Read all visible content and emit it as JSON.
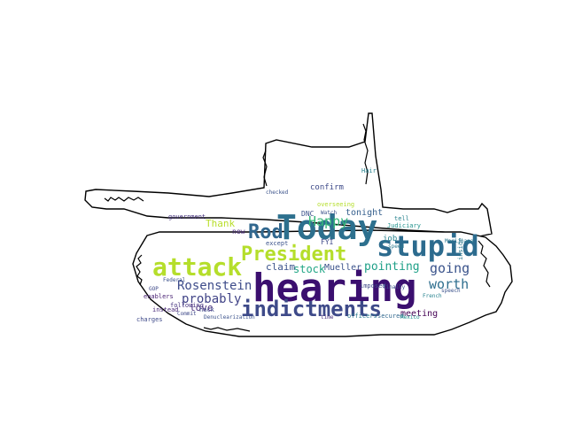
{
  "wordcloud": {
    "words": [
      {
        "text": "hearing",
        "color": "#3b0f6f"
      },
      {
        "text": "Today",
        "color": "#2d708e"
      },
      {
        "text": "stupid",
        "color": "#2c6b8e"
      },
      {
        "text": "indictments",
        "color": "#3e4a89"
      },
      {
        "text": "President",
        "color": "#b5de2b"
      },
      {
        "text": "attack",
        "color": "#b5de2b"
      },
      {
        "text": "Rod",
        "color": "#31678e"
      },
      {
        "text": "Rosenstein",
        "color": "#3e4c8a"
      },
      {
        "text": "worth",
        "color": "#2e6e8e"
      },
      {
        "text": "going",
        "color": "#3a538b"
      },
      {
        "text": "pointing",
        "color": "#1fa088"
      },
      {
        "text": "probably",
        "color": "#414487"
      },
      {
        "text": "Happy",
        "color": "#35b779"
      },
      {
        "text": "stock",
        "color": "#21a685"
      },
      {
        "text": "Thank",
        "color": "#b8de29"
      },
      {
        "text": "claim",
        "color": "#3b528b"
      },
      {
        "text": "love",
        "color": "#472d7b"
      },
      {
        "text": "tonight",
        "color": "#355f8d"
      },
      {
        "text": "Mueller",
        "color": "#3b528b"
      },
      {
        "text": "meeting",
        "color": "#440154"
      },
      {
        "text": "job",
        "color": "#26828e"
      },
      {
        "text": "confirm",
        "color": "#3e4a89"
      },
      {
        "text": "DNC",
        "color": "#3b528b"
      },
      {
        "text": "new",
        "color": "#482878"
      },
      {
        "text": "FYI",
        "color": "#3e4989"
      },
      {
        "text": "government",
        "color": "#46327e"
      },
      {
        "text": "instead",
        "color": "#482878"
      },
      {
        "text": "hack",
        "color": "#3e4989"
      },
      {
        "text": "following",
        "color": "#46337f"
      },
      {
        "text": "enablers",
        "color": "#482173"
      },
      {
        "text": "charges",
        "color": "#3e4989"
      },
      {
        "text": "tell",
        "color": "#26828e"
      },
      {
        "text": "Judiciary",
        "color": "#21918c"
      },
      {
        "text": "inside",
        "color": "#2a788e"
      },
      {
        "text": "overseeing",
        "color": "#b5de2b"
      },
      {
        "text": "except",
        "color": "#3b528b"
      },
      {
        "text": "imposed",
        "color": "#3e4989"
      },
      {
        "text": "Watch",
        "color": "#3b528b"
      },
      {
        "text": "officers",
        "color": "#2a788e"
      },
      {
        "text": "secured",
        "color": "#31688e"
      },
      {
        "text": "Denuclearization",
        "color": "#3b528b"
      },
      {
        "text": "time",
        "color": "#472d7b"
      },
      {
        "text": "French",
        "color": "#26828e"
      },
      {
        "text": "speech",
        "color": "#3b528b"
      },
      {
        "text": "Marijuana",
        "color": "#2a788e"
      },
      {
        "text": "Mexico",
        "color": "#21918c"
      },
      {
        "text": "finally",
        "color": "#3b528b"
      },
      {
        "text": "Commit",
        "color": "#3e4989"
      },
      {
        "text": "Hair",
        "color": "#26828e"
      },
      {
        "text": "Federal",
        "color": "#3b528b"
      },
      {
        "text": "GOP",
        "color": "#3e4989"
      },
      {
        "text": "speed",
        "color": "#2a788e"
      },
      {
        "text": "checked",
        "color": "#3b528b"
      }
    ]
  }
}
